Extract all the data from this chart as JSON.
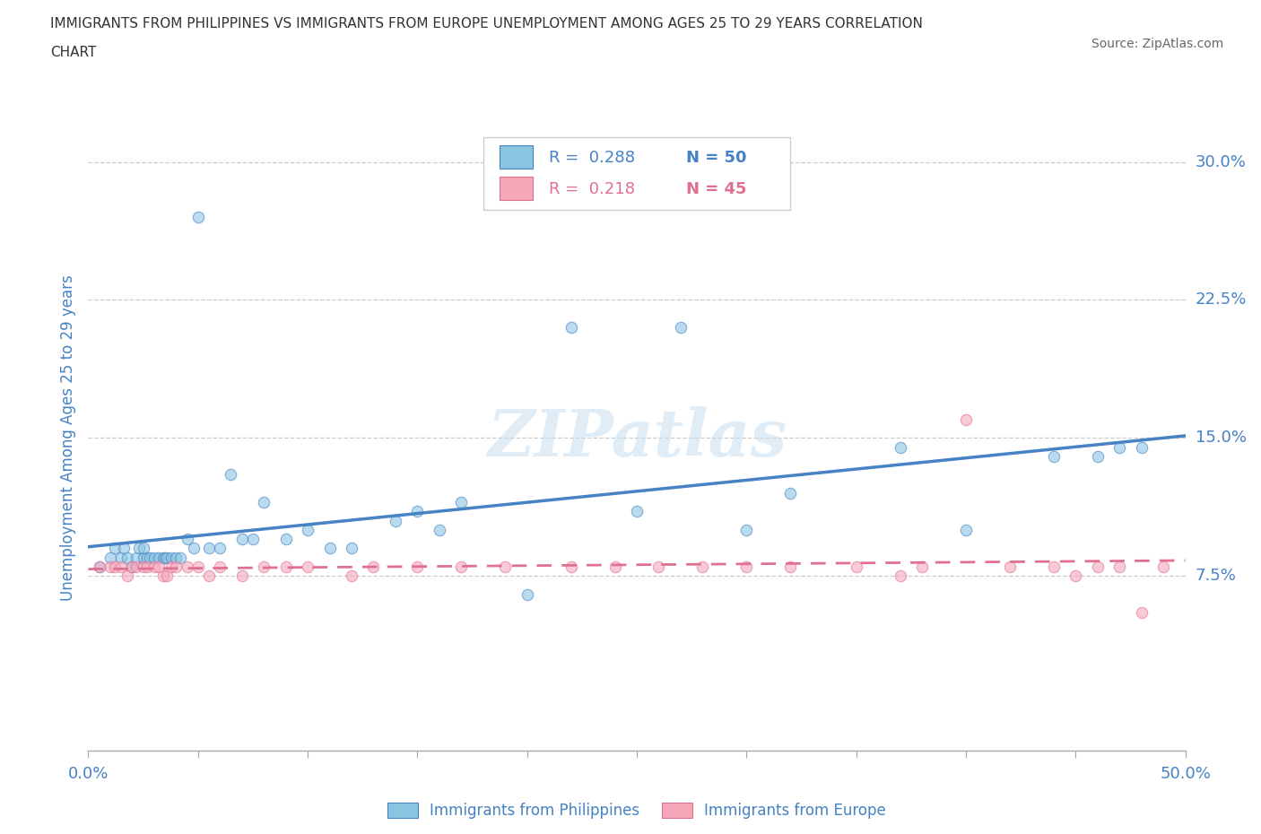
{
  "title_line1": "IMMIGRANTS FROM PHILIPPINES VS IMMIGRANTS FROM EUROPE UNEMPLOYMENT AMONG AGES 25 TO 29 YEARS CORRELATION",
  "title_line2": "CHART",
  "source": "Source: ZipAtlas.com",
  "ylabel": "Unemployment Among Ages 25 to 29 years",
  "xlim": [
    0.0,
    0.5
  ],
  "ylim": [
    -0.02,
    0.32
  ],
  "yticks": [
    0.075,
    0.15,
    0.225,
    0.3
  ],
  "ytick_labels": [
    "7.5%",
    "15.0%",
    "22.5%",
    "30.0%"
  ],
  "grid_color": "#cccccc",
  "background_color": "#ffffff",
  "blue_color": "#89c4e1",
  "pink_color": "#f4a7b9",
  "blue_line_color": "#4682c4",
  "pink_line_color": "#e07090",
  "blue_label": "Immigrants from Philippines",
  "pink_label": "Immigrants from Europe",
  "title_color": "#333333",
  "source_color": "#666666",
  "tick_label_color": "#4682c4",
  "blue_scatter_x": [
    0.005,
    0.01,
    0.012,
    0.015,
    0.016,
    0.018,
    0.02,
    0.022,
    0.023,
    0.025,
    0.025,
    0.027,
    0.028,
    0.03,
    0.032,
    0.034,
    0.035,
    0.036,
    0.038,
    0.04,
    0.042,
    0.045,
    0.048,
    0.05,
    0.055,
    0.06,
    0.065,
    0.07,
    0.075,
    0.08,
    0.09,
    0.1,
    0.11,
    0.12,
    0.14,
    0.15,
    0.16,
    0.17,
    0.2,
    0.22,
    0.25,
    0.27,
    0.3,
    0.32,
    0.37,
    0.4,
    0.44,
    0.46,
    0.47,
    0.48
  ],
  "blue_scatter_y": [
    0.08,
    0.085,
    0.09,
    0.085,
    0.09,
    0.085,
    0.08,
    0.085,
    0.09,
    0.085,
    0.09,
    0.085,
    0.085,
    0.085,
    0.085,
    0.085,
    0.085,
    0.085,
    0.085,
    0.085,
    0.085,
    0.095,
    0.09,
    0.27,
    0.09,
    0.09,
    0.13,
    0.095,
    0.095,
    0.115,
    0.095,
    0.1,
    0.09,
    0.09,
    0.105,
    0.11,
    0.1,
    0.115,
    0.065,
    0.21,
    0.11,
    0.21,
    0.1,
    0.12,
    0.145,
    0.1,
    0.14,
    0.14,
    0.145,
    0.145
  ],
  "pink_scatter_x": [
    0.005,
    0.01,
    0.012,
    0.015,
    0.018,
    0.02,
    0.022,
    0.025,
    0.027,
    0.03,
    0.032,
    0.034,
    0.036,
    0.038,
    0.04,
    0.045,
    0.05,
    0.055,
    0.06,
    0.07,
    0.08,
    0.09,
    0.1,
    0.12,
    0.13,
    0.15,
    0.17,
    0.19,
    0.22,
    0.24,
    0.26,
    0.28,
    0.3,
    0.32,
    0.35,
    0.37,
    0.38,
    0.4,
    0.42,
    0.44,
    0.45,
    0.46,
    0.47,
    0.48,
    0.49
  ],
  "pink_scatter_y": [
    0.08,
    0.08,
    0.08,
    0.08,
    0.075,
    0.08,
    0.08,
    0.08,
    0.08,
    0.08,
    0.08,
    0.075,
    0.075,
    0.08,
    0.08,
    0.08,
    0.08,
    0.075,
    0.08,
    0.075,
    0.08,
    0.08,
    0.08,
    0.075,
    0.08,
    0.08,
    0.08,
    0.08,
    0.08,
    0.08,
    0.08,
    0.08,
    0.08,
    0.08,
    0.08,
    0.075,
    0.08,
    0.16,
    0.08,
    0.08,
    0.075,
    0.08,
    0.08,
    0.055,
    0.08
  ]
}
